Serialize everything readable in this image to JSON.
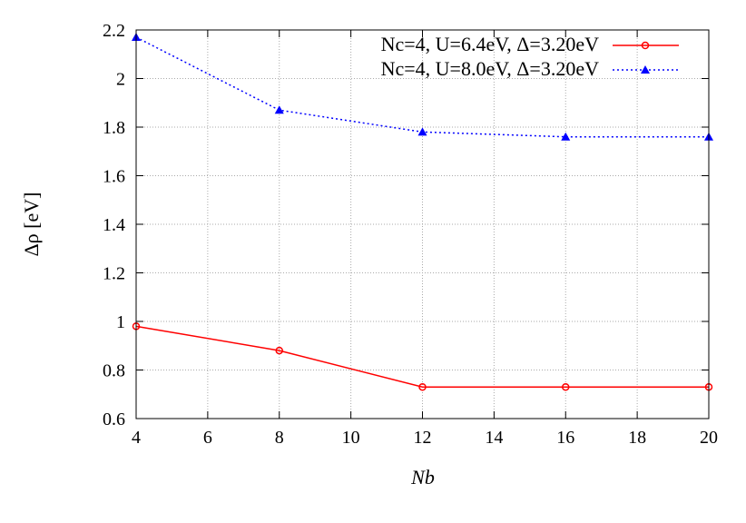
{
  "chart_data": {
    "type": "line",
    "xlabel": "Nb",
    "ylabel": "Δρ [eV]",
    "xlim": [
      4,
      20
    ],
    "ylim": [
      0.6,
      2.2
    ],
    "xticks": [
      4,
      6,
      8,
      10,
      12,
      14,
      16,
      18,
      20
    ],
    "yticks": [
      0.6,
      0.8,
      1,
      1.2,
      1.4,
      1.6,
      1.8,
      2,
      2.2
    ],
    "grid": true,
    "legend_position": "top-right",
    "series": [
      {
        "name": "Nc=4, U=6.4eV, Δ=3.20eV",
        "color": "#ff0000",
        "marker": "open-circle",
        "linestyle": "solid",
        "x": [
          4,
          8,
          12,
          16,
          20
        ],
        "y": [
          0.98,
          0.88,
          0.73,
          0.73,
          0.73
        ]
      },
      {
        "name": "Nc=4, U=8.0eV, Δ=3.20eV",
        "color": "#0000ff",
        "marker": "filled-triangle",
        "linestyle": "dotted",
        "x": [
          4,
          8,
          12,
          16,
          20
        ],
        "y": [
          2.17,
          1.87,
          1.78,
          1.76,
          1.76
        ]
      }
    ]
  }
}
